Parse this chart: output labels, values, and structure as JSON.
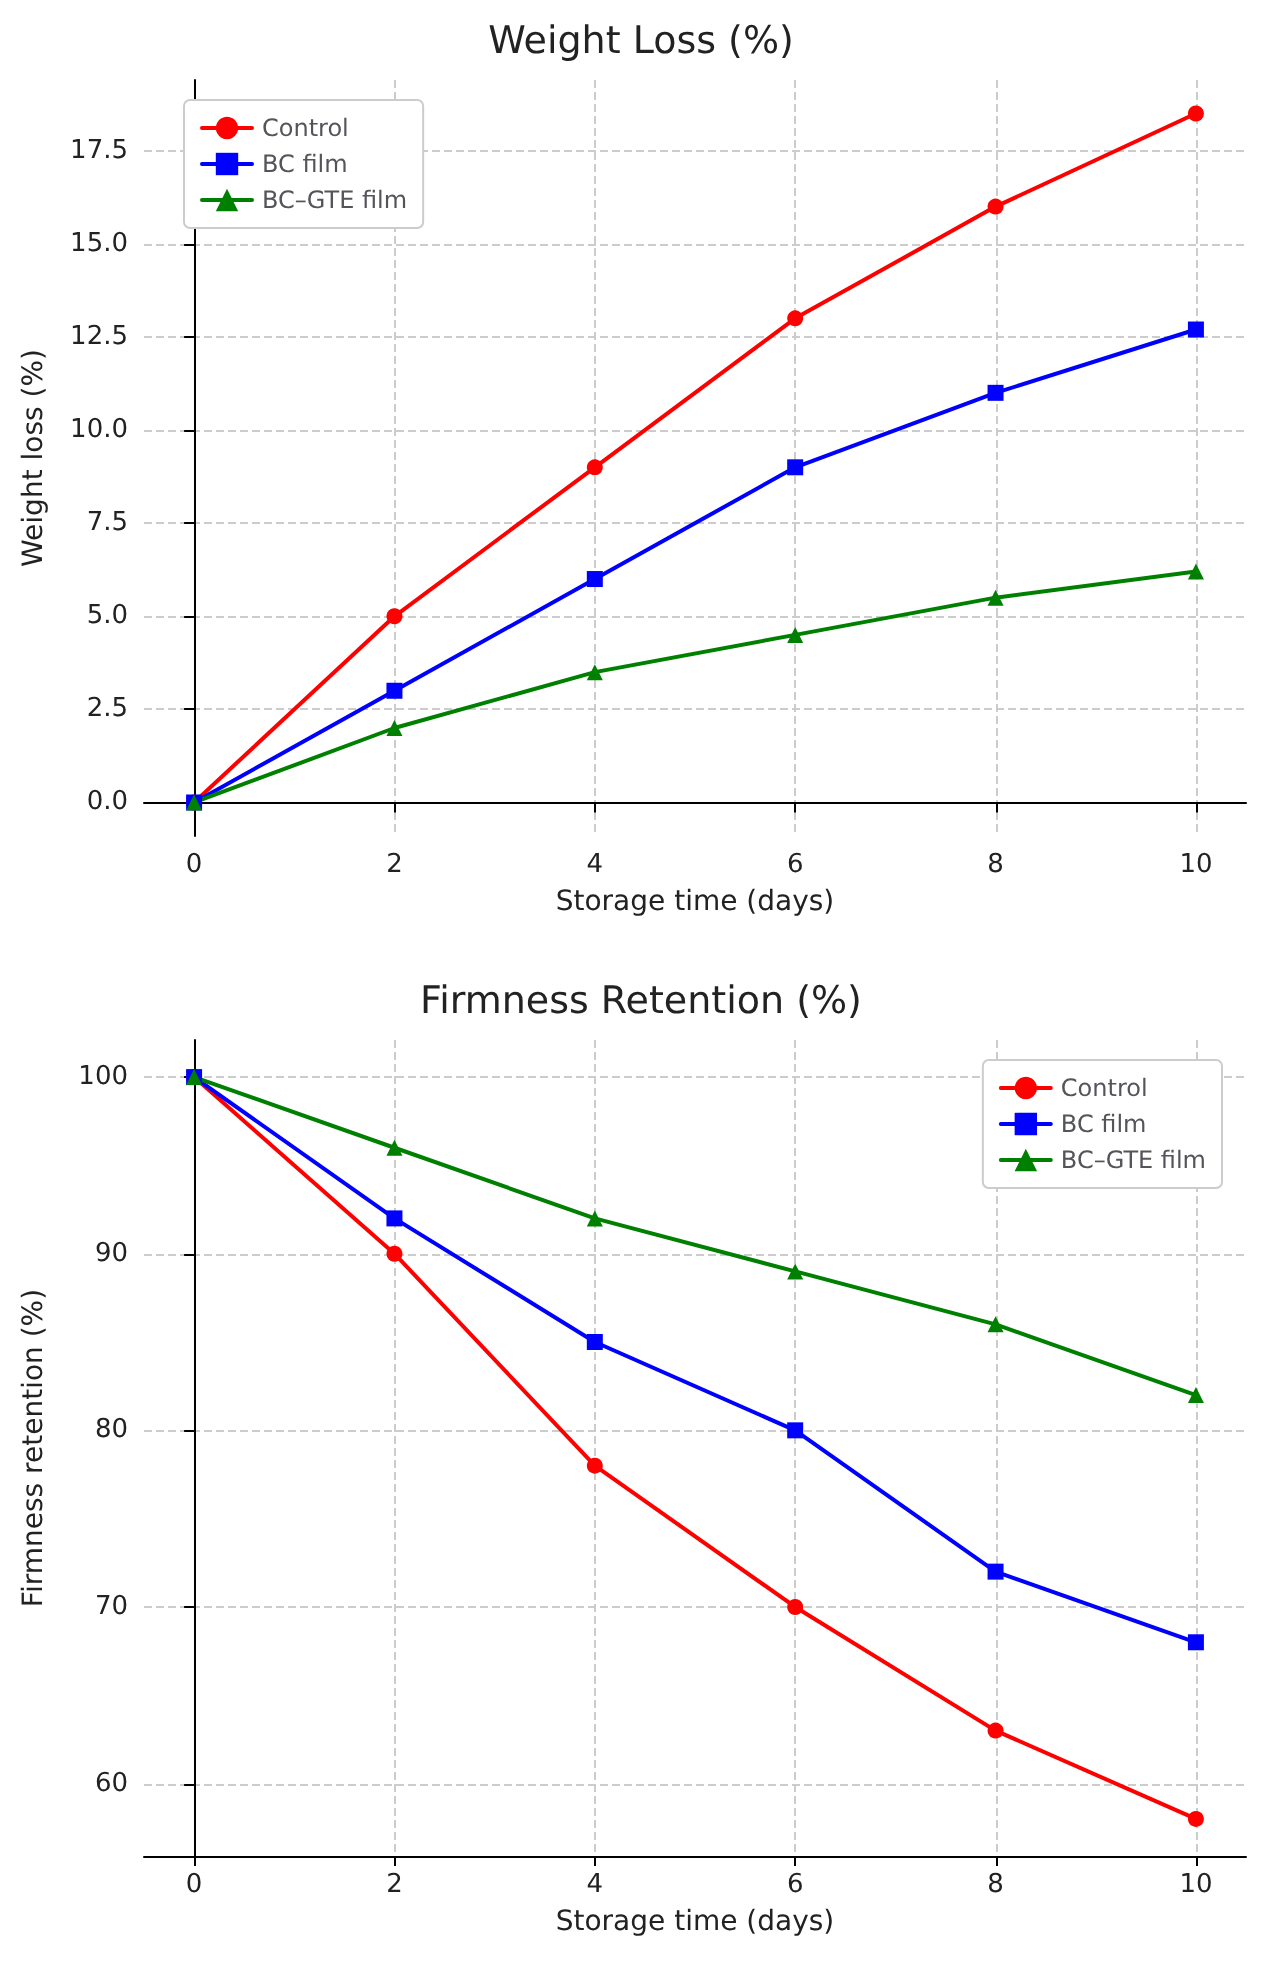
{
  "chart_data": [
    {
      "type": "line",
      "title": "Weight Loss (%)",
      "xlabel": "Storage time (days)",
      "ylabel": "Weight loss (%)",
      "x": [
        0,
        2,
        4,
        6,
        8,
        10
      ],
      "series": [
        {
          "name": "Control",
          "color": "#ff0000",
          "marker": "circle",
          "values": [
            0,
            5,
            9,
            13,
            16,
            18.5
          ]
        },
        {
          "name": "BC film",
          "color": "#0000ff",
          "marker": "square",
          "values": [
            0,
            3,
            6,
            9,
            11,
            12.7
          ]
        },
        {
          "name": "BC–GTE film",
          "color": "#008000",
          "marker": "triangle",
          "values": [
            0,
            2,
            3.5,
            4.5,
            5.5,
            6.2
          ]
        }
      ],
      "xlim": [
        -0.5,
        10.5
      ],
      "xticks": [
        0,
        2,
        4,
        6,
        8,
        10
      ],
      "ylim": [
        -0.9,
        19.4
      ],
      "yticks": [
        {
          "value": 0,
          "label": "0.0"
        },
        {
          "value": 2.5,
          "label": "2.5"
        },
        {
          "value": 5,
          "label": "5.0"
        },
        {
          "value": 7.5,
          "label": "7.5"
        },
        {
          "value": 10,
          "label": "10.0"
        },
        {
          "value": 12.5,
          "label": "12.5"
        },
        {
          "value": 15,
          "label": "15.0"
        },
        {
          "value": 17.5,
          "label": "17.5"
        }
      ],
      "grid": true,
      "legend": "top left"
    },
    {
      "type": "line",
      "title": "Firmness Retention (%)",
      "xlabel": "Storage time (days)",
      "ylabel": "Firmness retention (%)",
      "x": [
        0,
        2,
        4,
        6,
        8,
        10
      ],
      "series": [
        {
          "name": "Control",
          "color": "#ff0000",
          "marker": "circle",
          "values": [
            100,
            90,
            78,
            70,
            63,
            58
          ]
        },
        {
          "name": "BC film",
          "color": "#0000ff",
          "marker": "square",
          "values": [
            100,
            92,
            85,
            80,
            72,
            68
          ]
        },
        {
          "name": "BC–GTE film",
          "color": "#008000",
          "marker": "triangle",
          "values": [
            100,
            96,
            92,
            89,
            86,
            82
          ]
        }
      ],
      "xlim": [
        -0.5,
        10.5
      ],
      "xticks": [
        0,
        2,
        4,
        6,
        8,
        10
      ],
      "ylim": [
        55.9,
        102.1
      ],
      "yticks": [
        60,
        70,
        80,
        90,
        100
      ],
      "grid": true,
      "legend": "top right"
    }
  ]
}
